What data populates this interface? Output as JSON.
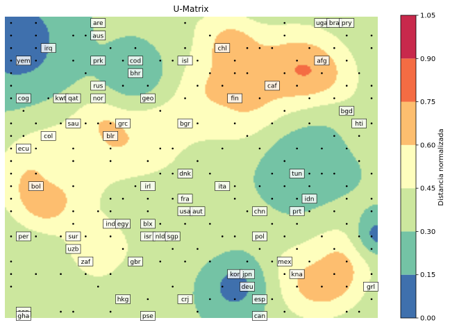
{
  "chart_data": {
    "type": "heatmap",
    "title": "U-Matrix",
    "colorbar": {
      "label": "Distancia normalizada",
      "ticks": [
        "0.00",
        "0.15",
        "0.30",
        "0.45",
        "0.60",
        "0.75",
        "0.90",
        "1.05"
      ],
      "levels": [
        0.0,
        0.15,
        0.3,
        0.45,
        0.6,
        0.75,
        0.9,
        1.05
      ],
      "colors": [
        "#3f70ad",
        "#74c3a5",
        "#cce79e",
        "#fefebd",
        "#fdbe6f",
        "#f46c43",
        "#c8294c"
      ]
    },
    "grid_size": [
      30,
      24
    ],
    "grid_on": false,
    "peaks": [
      {
        "x": 17.1,
        "y": 2.5,
        "value": 1.05,
        "radius": 1.6
      },
      {
        "x": 23.5,
        "y": 5.0,
        "value": 0.98,
        "radius": 2.6
      },
      {
        "x": 20.0,
        "y": 6.5,
        "value": 0.82,
        "radius": 3.0
      },
      {
        "x": 15.8,
        "y": 4.5,
        "value": 0.7,
        "radius": 2.6
      },
      {
        "x": 8.0,
        "y": 8.5,
        "value": 0.95,
        "radius": 1.8
      },
      {
        "x": 11.0,
        "y": 8.0,
        "value": 0.7,
        "radius": 2.6
      },
      {
        "x": 3.0,
        "y": 13.5,
        "value": 0.95,
        "radius": 1.6
      },
      {
        "x": 2.8,
        "y": 12.0,
        "value": 0.68,
        "radius": 2.6
      },
      {
        "x": 25.0,
        "y": 19.5,
        "value": 1.0,
        "radius": 1.9
      },
      {
        "x": 24.0,
        "y": 18.5,
        "value": 0.7,
        "radius": 3.0
      },
      {
        "x": 7.0,
        "y": 18.0,
        "value": 0.6,
        "radius": 2.0
      },
      {
        "x": 11.0,
        "y": 20.0,
        "value": 0.5,
        "radius": 2.2
      },
      {
        "x": 16.0,
        "y": 17.0,
        "value": 0.45,
        "radius": 2.4
      },
      {
        "x": 26.0,
        "y": 9.0,
        "value": 0.45,
        "radius": 2.2
      },
      {
        "x": 14.5,
        "y": 11.5,
        "value": 0.45,
        "radius": 2.6
      },
      {
        "x": 13.5,
        "y": 1.0,
        "value": 0.45,
        "radius": 2.6
      },
      {
        "x": 5.0,
        "y": 10.5,
        "value": 0.5,
        "radius": 2.5
      },
      {
        "x": 8.5,
        "y": 2.5,
        "value": 0.4,
        "radius": 2.0
      },
      {
        "x": 9.0,
        "y": 14.5,
        "value": 0.45,
        "radius": 2.2
      },
      {
        "x": 22.0,
        "y": 15.0,
        "value": 0.38,
        "radius": 3.0
      },
      {
        "x": 2.0,
        "y": 21.5,
        "value": 0.3,
        "radius": 2.0
      },
      {
        "x": 12.0,
        "y": 23.0,
        "value": 0.35,
        "radius": 3.0
      }
    ],
    "valleys": [
      {
        "x": 0.5,
        "y": 1.5,
        "value": 0.05,
        "radius": 3.2
      },
      {
        "x": 10.0,
        "y": 4.0,
        "value": 0.18,
        "radius": 2.4
      },
      {
        "x": 23.5,
        "y": 11.0,
        "value": 0.18,
        "radius": 3.6
      },
      {
        "x": 18.0,
        "y": 21.0,
        "value": 0.08,
        "radius": 2.0
      },
      {
        "x": 29.5,
        "y": 16.8,
        "value": 0.08,
        "radius": 1.2
      }
    ],
    "nodes": [
      {
        "x": 0,
        "y": 0
      },
      {
        "x": 0,
        "y": 1
      },
      {
        "x": 0,
        "y": 2
      },
      {
        "x": 0,
        "y": 3
      },
      {
        "x": 0,
        "y": 4
      },
      {
        "x": 0,
        "y": 5
      },
      {
        "x": 0,
        "y": 6
      },
      {
        "x": 0,
        "y": 8
      },
      {
        "x": 0,
        "y": 9
      },
      {
        "x": 0,
        "y": 10
      },
      {
        "x": 0,
        "y": 11
      },
      {
        "x": 0,
        "y": 12
      },
      {
        "x": 0,
        "y": 13
      },
      {
        "x": 0,
        "y": 14
      },
      {
        "x": 0,
        "y": 15
      },
      {
        "x": 0,
        "y": 17
      },
      {
        "x": 0,
        "y": 19
      },
      {
        "x": 0,
        "y": 20
      },
      {
        "x": 0,
        "y": 21
      },
      {
        "x": 1,
        "y": 3
      },
      {
        "x": 1,
        "y": 6
      },
      {
        "x": 1,
        "y": 7
      },
      {
        "x": 1,
        "y": 9
      },
      {
        "x": 2,
        "y": 0
      },
      {
        "x": 2,
        "y": 1
      },
      {
        "x": 2,
        "y": 2
      },
      {
        "x": 2,
        "y": 3
      },
      {
        "x": 2,
        "y": 8
      },
      {
        "x": 2,
        "y": 10
      },
      {
        "x": 2,
        "y": 12
      },
      {
        "x": 2,
        "y": 17
      },
      {
        "x": 2,
        "y": 20
      },
      {
        "x": 3,
        "y": 6
      },
      {
        "x": 3,
        "y": 9
      },
      {
        "x": 4,
        "y": 8
      },
      {
        "x": 4,
        "y": 17
      },
      {
        "x": 4,
        "y": 20
      },
      {
        "x": 4,
        "y": 23
      },
      {
        "x": 5,
        "y": 1
      },
      {
        "x": 5,
        "y": 3
      },
      {
        "x": 5,
        "y": 10
      },
      {
        "x": 5,
        "y": 11
      },
      {
        "x": 5,
        "y": 13
      },
      {
        "x": 5,
        "y": 15
      },
      {
        "x": 5,
        "y": 16
      },
      {
        "x": 5,
        "y": 17
      },
      {
        "x": 5,
        "y": 23
      },
      {
        "x": 6,
        "y": 1
      },
      {
        "x": 6,
        "y": 4
      },
      {
        "x": 6,
        "y": 8
      },
      {
        "x": 6,
        "y": 17
      },
      {
        "x": 6,
        "y": 20
      },
      {
        "x": 7,
        "y": 8
      },
      {
        "x": 7,
        "y": 15
      },
      {
        "x": 7,
        "y": 21
      },
      {
        "x": 8,
        "y": 2
      },
      {
        "x": 8,
        "y": 8
      },
      {
        "x": 8,
        "y": 10
      },
      {
        "x": 8,
        "y": 11
      },
      {
        "x": 8,
        "y": 14
      },
      {
        "x": 8,
        "y": 15
      },
      {
        "x": 8,
        "y": 17
      },
      {
        "x": 8,
        "y": 20
      },
      {
        "x": 8,
        "y": 23
      },
      {
        "x": 9,
        "y": 3
      },
      {
        "x": 9,
        "y": 5
      },
      {
        "x": 9,
        "y": 14
      },
      {
        "x": 9,
        "y": 18
      },
      {
        "x": 10,
        "y": 2
      },
      {
        "x": 10,
        "y": 13
      },
      {
        "x": 10,
        "y": 19
      },
      {
        "x": 11,
        "y": 5
      },
      {
        "x": 11,
        "y": 6
      },
      {
        "x": 11,
        "y": 11
      },
      {
        "x": 11,
        "y": 14
      },
      {
        "x": 11,
        "y": 15
      },
      {
        "x": 11,
        "y": 17
      },
      {
        "x": 11,
        "y": 22
      },
      {
        "x": 12,
        "y": 3
      },
      {
        "x": 12,
        "y": 7
      },
      {
        "x": 12,
        "y": 10
      },
      {
        "x": 12,
        "y": 12
      },
      {
        "x": 12,
        "y": 16
      },
      {
        "x": 12,
        "y": 19
      },
      {
        "x": 13,
        "y": 3
      },
      {
        "x": 13,
        "y": 10
      },
      {
        "x": 13,
        "y": 12
      },
      {
        "x": 13,
        "y": 14
      },
      {
        "x": 13,
        "y": 18
      },
      {
        "x": 13,
        "y": 21
      },
      {
        "x": 14,
        "y": 0
      },
      {
        "x": 14,
        "y": 2
      },
      {
        "x": 14,
        "y": 6
      },
      {
        "x": 14,
        "y": 12
      },
      {
        "x": 14,
        "y": 15
      },
      {
        "x": 14,
        "y": 16
      },
      {
        "x": 14,
        "y": 19
      },
      {
        "x": 15,
        "y": 3
      },
      {
        "x": 15,
        "y": 5
      },
      {
        "x": 15,
        "y": 8
      },
      {
        "x": 15,
        "y": 11
      },
      {
        "x": 15,
        "y": 15
      },
      {
        "x": 15,
        "y": 18
      },
      {
        "x": 15,
        "y": 23
      },
      {
        "x": 16,
        "y": 1
      },
      {
        "x": 16,
        "y": 4
      },
      {
        "x": 16,
        "y": 12
      },
      {
        "x": 16,
        "y": 16
      },
      {
        "x": 16,
        "y": 19
      },
      {
        "x": 16,
        "y": 22
      },
      {
        "x": 17,
        "y": 5
      },
      {
        "x": 17,
        "y": 10
      },
      {
        "x": 17,
        "y": 13
      },
      {
        "x": 17,
        "y": 17
      },
      {
        "x": 17,
        "y": 21
      },
      {
        "x": 18,
        "y": 3
      },
      {
        "x": 18,
        "y": 4
      },
      {
        "x": 18,
        "y": 8
      },
      {
        "x": 18,
        "y": 13
      },
      {
        "x": 18,
        "y": 14
      },
      {
        "x": 18,
        "y": 17
      },
      {
        "x": 18,
        "y": 22
      },
      {
        "x": 19,
        "y": 2
      },
      {
        "x": 19,
        "y": 4
      },
      {
        "x": 19,
        "y": 9
      },
      {
        "x": 19,
        "y": 15
      },
      {
        "x": 19,
        "y": 19
      },
      {
        "x": 20,
        "y": 2
      },
      {
        "x": 20,
        "y": 6
      },
      {
        "x": 20,
        "y": 10
      },
      {
        "x": 20,
        "y": 13
      },
      {
        "x": 20,
        "y": 18
      },
      {
        "x": 21,
        "y": 2
      },
      {
        "x": 21,
        "y": 8
      },
      {
        "x": 21,
        "y": 12
      },
      {
        "x": 21,
        "y": 14
      },
      {
        "x": 21,
        "y": 16
      },
      {
        "x": 21,
        "y": 19
      },
      {
        "x": 21,
        "y": 22
      },
      {
        "x": 22,
        "y": 0
      },
      {
        "x": 22,
        "y": 1
      },
      {
        "x": 22,
        "y": 4
      },
      {
        "x": 22,
        "y": 7
      },
      {
        "x": 22,
        "y": 11
      },
      {
        "x": 22,
        "y": 13
      },
      {
        "x": 22,
        "y": 17
      },
      {
        "x": 22,
        "y": 20
      },
      {
        "x": 22,
        "y": 23
      },
      {
        "x": 23,
        "y": 3
      },
      {
        "x": 23,
        "y": 5
      },
      {
        "x": 23,
        "y": 10
      },
      {
        "x": 23,
        "y": 14
      },
      {
        "x": 23,
        "y": 16
      },
      {
        "x": 23,
        "y": 18
      },
      {
        "x": 23,
        "y": 21
      },
      {
        "x": 24,
        "y": 2
      },
      {
        "x": 24,
        "y": 6
      },
      {
        "x": 24,
        "y": 8
      },
      {
        "x": 24,
        "y": 12
      },
      {
        "x": 24,
        "y": 13
      },
      {
        "x": 24,
        "y": 15
      },
      {
        "x": 24,
        "y": 19
      },
      {
        "x": 25,
        "y": 0
      },
      {
        "x": 25,
        "y": 4
      },
      {
        "x": 25,
        "y": 10
      },
      {
        "x": 25,
        "y": 12
      },
      {
        "x": 25,
        "y": 17
      },
      {
        "x": 25,
        "y": 21
      },
      {
        "x": 26,
        "y": 2
      },
      {
        "x": 26,
        "y": 6
      },
      {
        "x": 26,
        "y": 9
      },
      {
        "x": 26,
        "y": 12
      },
      {
        "x": 26,
        "y": 15
      },
      {
        "x": 26,
        "y": 18
      },
      {
        "x": 26,
        "y": 20
      },
      {
        "x": 27,
        "y": 1
      },
      {
        "x": 27,
        "y": 3
      },
      {
        "x": 27,
        "y": 5
      },
      {
        "x": 27,
        "y": 7
      },
      {
        "x": 27,
        "y": 10
      },
      {
        "x": 27,
        "y": 13
      },
      {
        "x": 27,
        "y": 14
      },
      {
        "x": 27,
        "y": 16
      },
      {
        "x": 27,
        "y": 19
      },
      {
        "x": 27,
        "y": 21
      },
      {
        "x": 27,
        "y": 23
      },
      {
        "x": 28,
        "y": 4
      },
      {
        "x": 28,
        "y": 9
      },
      {
        "x": 28,
        "y": 11
      },
      {
        "x": 28,
        "y": 17
      },
      {
        "x": 28,
        "y": 23
      },
      {
        "x": 29,
        "y": 1
      },
      {
        "x": 29,
        "y": 2
      },
      {
        "x": 29,
        "y": 5
      },
      {
        "x": 29,
        "y": 6
      },
      {
        "x": 29,
        "y": 8
      },
      {
        "x": 29,
        "y": 12
      },
      {
        "x": 29,
        "y": 14
      },
      {
        "x": 29,
        "y": 15
      },
      {
        "x": 29,
        "y": 17
      },
      {
        "x": 29,
        "y": 18
      },
      {
        "x": 29,
        "y": 20
      },
      {
        "x": 29,
        "y": 21
      },
      {
        "x": 29,
        "y": 22
      }
    ],
    "labels": [
      {
        "text": "are",
        "x": 7,
        "y": 0
      },
      {
        "text": "uga",
        "x": 25,
        "y": 0
      },
      {
        "text": "bra",
        "x": 26,
        "y": 0
      },
      {
        "text": "pry",
        "x": 27,
        "y": 0
      },
      {
        "text": "aus",
        "x": 7,
        "y": 1
      },
      {
        "text": "irq",
        "x": 3,
        "y": 2
      },
      {
        "text": "chl",
        "x": 17,
        "y": 2
      },
      {
        "text": "yem",
        "x": 1,
        "y": 3
      },
      {
        "text": "prk",
        "x": 7,
        "y": 3
      },
      {
        "text": "cod",
        "x": 10,
        "y": 3
      },
      {
        "text": "isl",
        "x": 14,
        "y": 3
      },
      {
        "text": "afg",
        "x": 25,
        "y": 3
      },
      {
        "text": "bhr",
        "x": 10,
        "y": 4
      },
      {
        "text": "rus",
        "x": 7,
        "y": 5
      },
      {
        "text": "caf",
        "x": 21,
        "y": 5
      },
      {
        "text": "cog",
        "x": 1,
        "y": 6
      },
      {
        "text": "kwt",
        "x": 4,
        "y": 6
      },
      {
        "text": "qat",
        "x": 5,
        "y": 6
      },
      {
        "text": "nor",
        "x": 7,
        "y": 6
      },
      {
        "text": "geo",
        "x": 11,
        "y": 6
      },
      {
        "text": "fin",
        "x": 18,
        "y": 6
      },
      {
        "text": "bgd",
        "x": 27,
        "y": 7
      },
      {
        "text": "sau",
        "x": 5,
        "y": 8
      },
      {
        "text": "grc",
        "x": 9,
        "y": 8
      },
      {
        "text": "bgr",
        "x": 14,
        "y": 8
      },
      {
        "text": "hti",
        "x": 28,
        "y": 8
      },
      {
        "text": "col",
        "x": 3,
        "y": 9
      },
      {
        "text": "blr",
        "x": 8,
        "y": 9
      },
      {
        "text": "ecu",
        "x": 1,
        "y": 10
      },
      {
        "text": "dnk",
        "x": 14,
        "y": 12
      },
      {
        "text": "tun",
        "x": 23,
        "y": 12
      },
      {
        "text": "bol",
        "x": 2,
        "y": 13
      },
      {
        "text": "irl",
        "x": 11,
        "y": 13
      },
      {
        "text": "ita",
        "x": 17,
        "y": 13
      },
      {
        "text": "fra",
        "x": 14,
        "y": 14
      },
      {
        "text": "idn",
        "x": 24,
        "y": 14
      },
      {
        "text": "usa",
        "x": 14,
        "y": 15
      },
      {
        "text": "aut",
        "x": 15,
        "y": 15
      },
      {
        "text": "chn",
        "x": 20,
        "y": 15
      },
      {
        "text": "prt",
        "x": 23,
        "y": 15
      },
      {
        "text": "ind",
        "x": 8,
        "y": 16
      },
      {
        "text": "egy",
        "x": 9,
        "y": 16
      },
      {
        "text": "blx",
        "x": 11,
        "y": 16
      },
      {
        "text": "per",
        "x": 1,
        "y": 17
      },
      {
        "text": "sur",
        "x": 5,
        "y": 17
      },
      {
        "text": "isr",
        "x": 11,
        "y": 17
      },
      {
        "text": "nld",
        "x": 12,
        "y": 17
      },
      {
        "text": "sgp",
        "x": 13,
        "y": 17
      },
      {
        "text": "pol",
        "x": 20,
        "y": 17
      },
      {
        "text": "uzb",
        "x": 5,
        "y": 18
      },
      {
        "text": "zaf",
        "x": 6,
        "y": 19
      },
      {
        "text": "gbr",
        "x": 10,
        "y": 19
      },
      {
        "text": "mex",
        "x": 22,
        "y": 19
      },
      {
        "text": "kor",
        "x": 18,
        "y": 20
      },
      {
        "text": "jpn",
        "x": 19,
        "y": 20
      },
      {
        "text": "kna",
        "x": 23,
        "y": 20
      },
      {
        "text": "deu",
        "x": 19,
        "y": 21
      },
      {
        "text": "grl",
        "x": 29,
        "y": 21
      },
      {
        "text": "hkg",
        "x": 9,
        "y": 22
      },
      {
        "text": "crj",
        "x": 14,
        "y": 22
      },
      {
        "text": "esp",
        "x": 20,
        "y": 22
      },
      {
        "text": "sen",
        "x": 1,
        "y": 23
      },
      {
        "text": "gha",
        "x": 1,
        "y": 24
      },
      {
        "text": "pse",
        "x": 11,
        "y": 24
      },
      {
        "text": "can",
        "x": 20,
        "y": 24
      }
    ]
  }
}
